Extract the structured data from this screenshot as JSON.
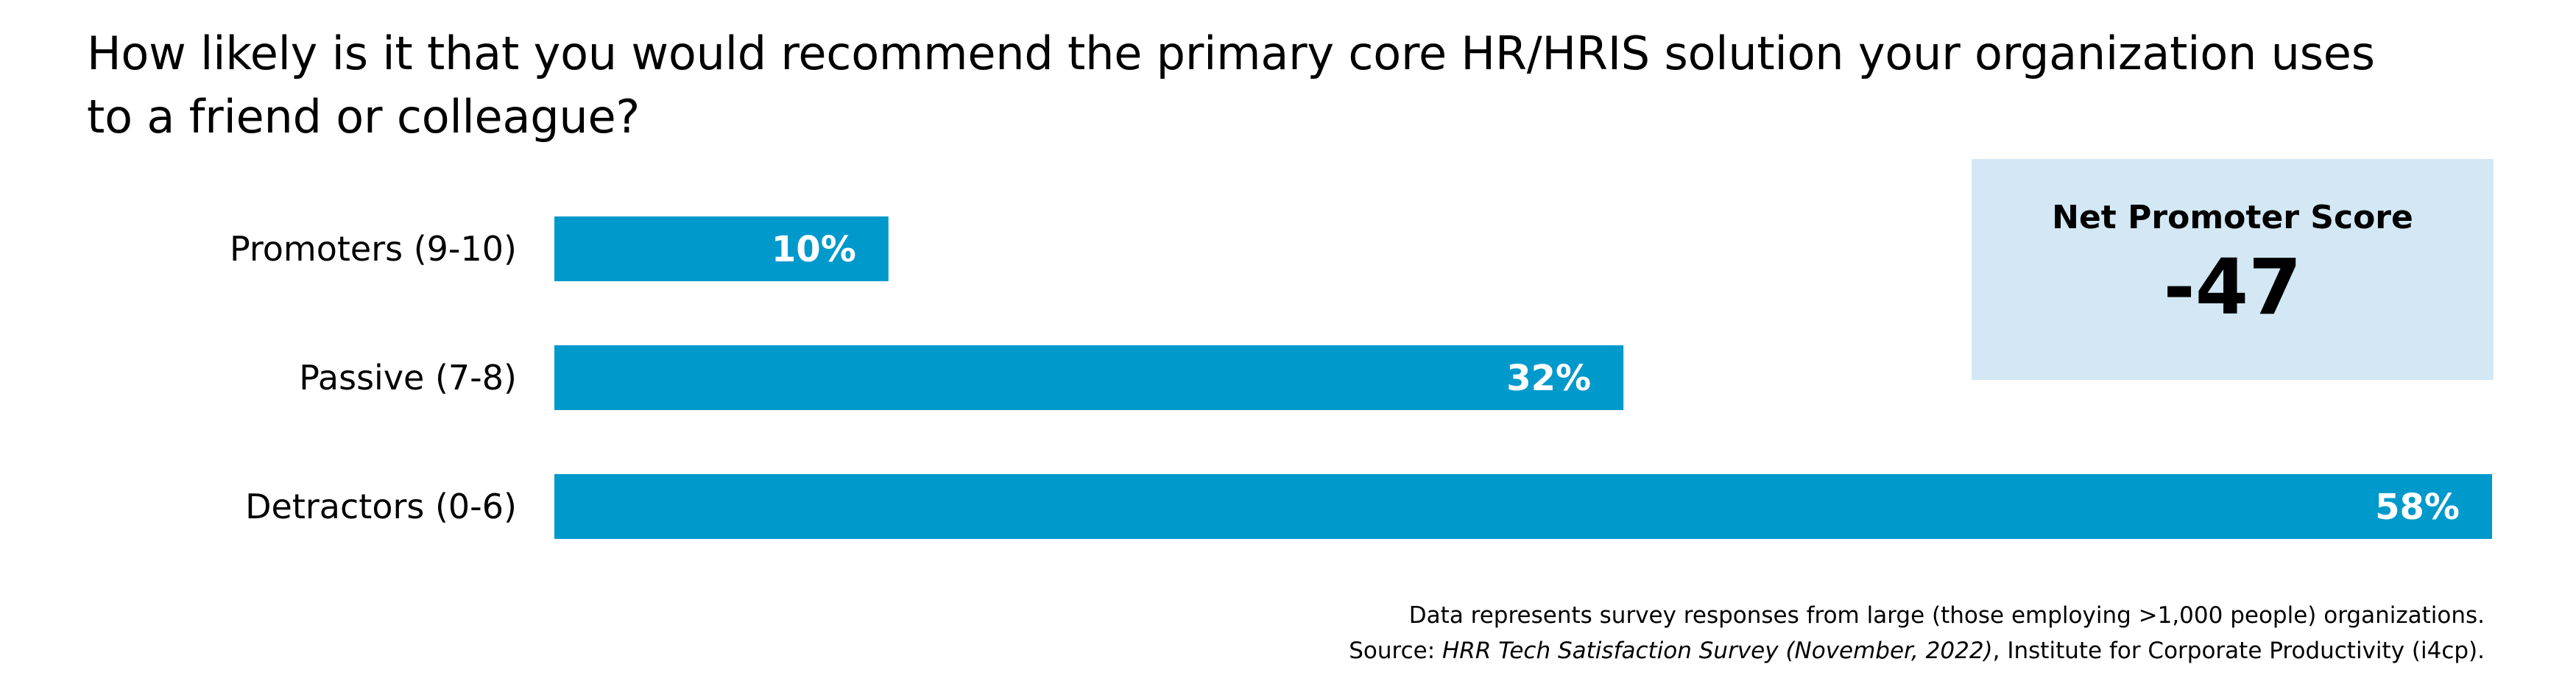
{
  "title": "How likely is it that you would recommend the primary core HR/HRIS solution your organization uses to a friend or colleague?",
  "colors": {
    "bar": "#0099cc",
    "bar_label": "#ffffff",
    "nps_box": "#d3e8f4"
  },
  "nps": {
    "label": "Net Promoter Score",
    "value": "-47"
  },
  "chart_data": {
    "type": "bar",
    "orientation": "horizontal",
    "categories": [
      "Promoters (9-10)",
      "Passive (7-8)",
      "Detractors (0-6)"
    ],
    "values": [
      10,
      32,
      58
    ],
    "value_labels": [
      "10%",
      "32%",
      "58%"
    ],
    "unit": "%",
    "xlim": [
      0,
      58
    ],
    "title": "How likely is it that you would recommend the primary core HR/HRIS solution your organization uses to a friend or colleague?",
    "grid": false,
    "legend": "none"
  },
  "footnote": {
    "line1": "Data represents survey responses from large (those employing >1,000 people) organizations.",
    "source_prefix": "Source: ",
    "source_title": "HRR Tech Satisfaction Survey (November, 2022)",
    "source_suffix": ", Institute for Corporate Productivity (i4cp)."
  }
}
